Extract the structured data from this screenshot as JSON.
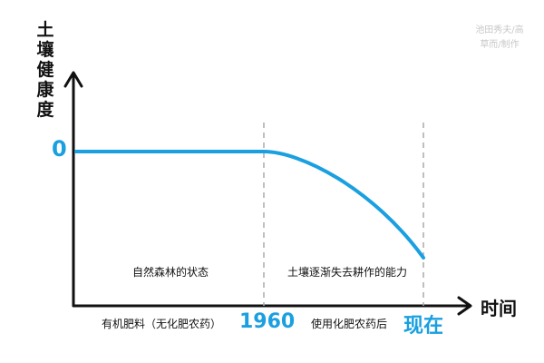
{
  "chart_data": {
    "type": "line",
    "ylabel": "土壤健康度",
    "xlabel": "时间",
    "y_tick_labels": [
      "0"
    ],
    "x_tick_labels": [
      "1960",
      "现在"
    ],
    "regions": [
      {
        "top_label": "自然森林的状态",
        "bottom_label": "有机肥料（无化肥农药）"
      },
      {
        "top_label": "土壤逐渐失去耕作的能力",
        "bottom_label": "使用化肥农药后"
      }
    ],
    "credit": [
      "池田秀夫/高",
      "草而/制作"
    ],
    "series": [
      {
        "x": [
          "start",
          "1960",
          "now"
        ],
        "y": [
          0,
          0,
          -0.6
        ]
      }
    ],
    "grid": false,
    "colors": {
      "line": "#1aa0e0",
      "axis": "#111111",
      "dash": "#aaaaaa",
      "accent": "#1aa0e0"
    }
  }
}
